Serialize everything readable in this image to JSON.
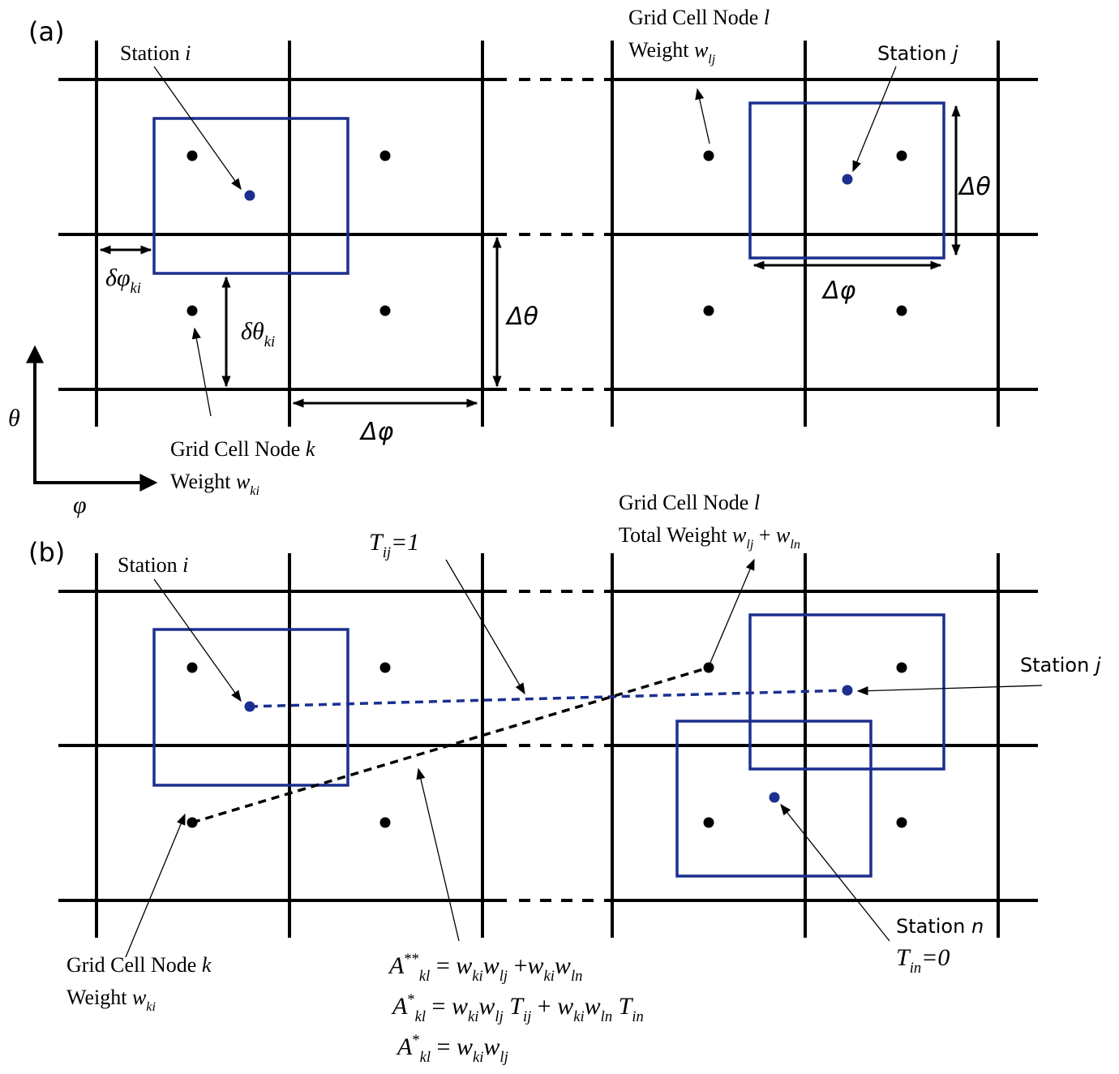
{
  "panel_a": {
    "label": "(a)",
    "texts": [
      [
        {
          "text": "Station "
        },
        {
          "text": "i",
          "style": "italic"
        }
      ],
      [
        {
          "text": "Grid Cell Node "
        },
        {
          "text": "l",
          "style": "italic"
        }
      ],
      [
        {
          "text": "Weight "
        },
        {
          "text": "w",
          "style": "italic"
        },
        {
          "text": "lj",
          "style": "sub"
        }
      ],
      [
        {
          "text": "Station "
        },
        {
          "text": "j",
          "style": "italic"
        }
      ],
      [
        {
          "text": "δφ",
          "style": "italic"
        },
        {
          "text": "ki",
          "style": "sub"
        }
      ],
      [
        {
          "text": "δθ",
          "style": "italic"
        },
        {
          "text": "ki",
          "style": "sub"
        }
      ],
      [
        {
          "text": "Δθ",
          "style": "italic"
        }
      ],
      [
        {
          "text": "Δθ",
          "style": "italic"
        }
      ],
      [
        {
          "text": "Δφ",
          "style": "italic"
        }
      ],
      [
        {
          "text": "Δφ",
          "style": "italic"
        }
      ],
      [
        {
          "text": "θ",
          "style": "italic"
        }
      ],
      [
        {
          "text": "φ",
          "style": "italic"
        }
      ],
      [
        {
          "text": "Grid Cell Node "
        },
        {
          "text": "k",
          "style": "italic"
        }
      ],
      [
        {
          "text": "Weight "
        },
        {
          "text": "w",
          "style": "italic"
        },
        {
          "text": "ki",
          "style": "sub"
        }
      ]
    ]
  },
  "panel_b": {
    "label": "(b)",
    "texts": [
      [
        {
          "text": "Station "
        },
        {
          "text": "i",
          "style": "italic"
        }
      ],
      [
        {
          "text": "T",
          "style": "italic"
        },
        {
          "text": "ij",
          "style": "sub"
        },
        {
          "text": "=1",
          "style": "italic"
        }
      ],
      [
        {
          "text": "Grid Cell Node "
        },
        {
          "text": "l",
          "style": "italic"
        }
      ],
      [
        {
          "text": "Total Weight "
        },
        {
          "text": "w",
          "style": "italic"
        },
        {
          "text": "lj",
          "style": "sub"
        },
        {
          "text": " + "
        },
        {
          "text": "w",
          "style": "italic"
        },
        {
          "text": "ln",
          "style": "sub"
        }
      ],
      [
        {
          "text": "Station "
        },
        {
          "text": "j",
          "style": "italic"
        }
      ],
      [
        {
          "text": "Station "
        },
        {
          "text": "n",
          "style": "italic"
        }
      ],
      [
        {
          "text": "T",
          "style": "italic"
        },
        {
          "text": "in",
          "style": "sub"
        },
        {
          "text": "=0",
          "style": "italic"
        }
      ],
      [
        {
          "text": "Grid Cell Node "
        },
        {
          "text": "k",
          "style": "italic"
        }
      ],
      [
        {
          "text": "Weight "
        },
        {
          "text": "w",
          "style": "italic"
        },
        {
          "text": "ki",
          "style": "sub"
        }
      ],
      [
        {
          "text": "A",
          "style": "italic"
        },
        {
          "text": "**",
          "style": "sup"
        },
        {
          "text": "kl",
          "style": "sub"
        },
        {
          "text": " = "
        },
        {
          "text": "w",
          "style": "italic"
        },
        {
          "text": "ki",
          "style": "sub"
        },
        {
          "text": "w",
          "style": "italic"
        },
        {
          "text": "lj",
          "style": "sub"
        },
        {
          "text": " +"
        },
        {
          "text": "w",
          "style": "italic"
        },
        {
          "text": "ki",
          "style": "sub"
        },
        {
          "text": "w",
          "style": "italic"
        },
        {
          "text": "ln",
          "style": "sub"
        }
      ],
      [
        {
          "text": "A",
          "style": "italic"
        },
        {
          "text": "*",
          "style": "sup"
        },
        {
          "text": "kl",
          "style": "sub"
        },
        {
          "text": " = "
        },
        {
          "text": "w",
          "style": "italic"
        },
        {
          "text": "ki",
          "style": "sub"
        },
        {
          "text": "w",
          "style": "italic"
        },
        {
          "text": "lj",
          "style": "sub"
        },
        {
          "text": " T",
          "style": "italic"
        },
        {
          "text": "ij",
          "style": "sub"
        },
        {
          "text": " + "
        },
        {
          "text": "w",
          "style": "italic"
        },
        {
          "text": "ki",
          "style": "sub"
        },
        {
          "text": "w",
          "style": "italic"
        },
        {
          "text": "ln",
          "style": "sub"
        },
        {
          "text": " T",
          "style": "italic"
        },
        {
          "text": "in",
          "style": "sub"
        }
      ],
      [
        {
          "text": "A",
          "style": "italic"
        },
        {
          "text": "*",
          "style": "sup"
        },
        {
          "text": "kl",
          "style": "sub"
        },
        {
          "text": " = "
        },
        {
          "text": "w",
          "style": "italic"
        },
        {
          "text": "ki",
          "style": "sub"
        },
        {
          "text": "w",
          "style": "italic"
        },
        {
          "text": "lj",
          "style": "sub"
        }
      ]
    ]
  }
}
